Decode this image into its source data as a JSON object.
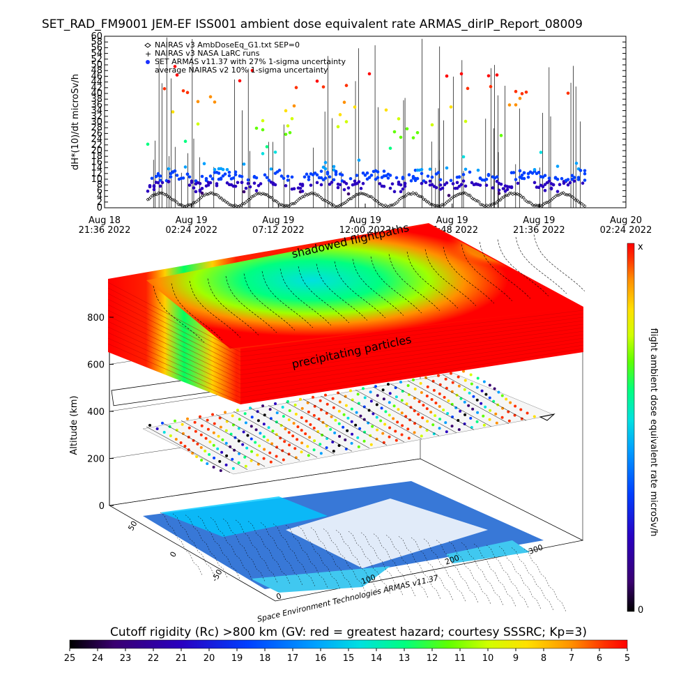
{
  "title": "SET_RAD_FM9001  JEM-EF ISS001 ambient dose equivalent rate ARMAS_dirIP_Report_08009",
  "chart_data": [
    {
      "type": "scatter",
      "ylabel": "dH*(10)/dt microSv/h",
      "y_ticks": [
        "0",
        "2",
        "4",
        "6",
        "8",
        "10",
        "12",
        "14",
        "16",
        "18",
        "20",
        "22",
        "24",
        "26",
        "28",
        "30",
        "32",
        "34",
        "36",
        "38",
        "40",
        "42",
        "44",
        "46",
        "48",
        "50",
        "52",
        "54",
        "56",
        "58",
        "60"
      ],
      "ylim": [
        0,
        60
      ],
      "x_ticks": [
        {
          "top": "Aug 18",
          "bottom": "21:36 2022"
        },
        {
          "top": "Aug 19",
          "bottom": "02:24 2022"
        },
        {
          "top": "Aug 19",
          "bottom": "07:12 2022"
        },
        {
          "top": "Aug 19",
          "bottom": "12:00 2022"
        },
        {
          "top": "Aug 19",
          "bottom": "16:48 2022"
        },
        {
          "top": "Aug 19",
          "bottom": "21:36 2022"
        },
        {
          "top": "Aug 20",
          "bottom": "02:24 2022"
        }
      ],
      "legend": [
        {
          "marker": "diamond",
          "label": "NAIRAS v3 AmbDoseEq_G1.txt SEP=0"
        },
        {
          "marker": "plus",
          "label": "NAIRAS v3 NASA LaRC runs"
        },
        {
          "marker": "dot",
          "label": "SET ARMAS v11.37 with 27% 1-sigma uncertainty"
        },
        {
          "marker": "none",
          "label": "average NAIRAS v2 10% 1-sigma uncertainty"
        }
      ],
      "legend_placement": "top-left",
      "grid": false
    },
    {
      "type": "heatmap",
      "zlabel": "Altitude (km)",
      "z_ticks": [
        "0",
        "200",
        "400",
        "600",
        "800"
      ],
      "lat_ticks": [
        "50",
        "0",
        "-50"
      ],
      "lon_ticks": [
        "0",
        "100",
        "200",
        "300"
      ],
      "annotations": [
        "shadowed flightpaths",
        "precipitating particles"
      ],
      "credit": "Space Environment Technologies ARMAS v11.37",
      "right_colorbar": {
        "label": "flight ambient dose equivalent rate microSv/h",
        "top": "x",
        "bottom": "0"
      },
      "bottom_colorbar": {
        "label": "Cutoff rigidity (Rc) >800 km (GV: red = greatest hazard; courtesy SSSRC; Kp=3)",
        "ticks": [
          "25",
          "24",
          "23",
          "22",
          "21",
          "20",
          "19",
          "18",
          "17",
          "16",
          "15",
          "14",
          "13",
          "12",
          "11",
          "10",
          "9",
          "8",
          "7",
          "6",
          "5"
        ]
      }
    }
  ],
  "colors": {
    "rainbow": [
      "#000000",
      "#3a0070",
      "#2a00c0",
      "#0040ff",
      "#00a0ff",
      "#00e0e0",
      "#00ff80",
      "#60ff00",
      "#d0ff00",
      "#ffe000",
      "#ff9000",
      "#ff3000",
      "#ff0000"
    ]
  }
}
